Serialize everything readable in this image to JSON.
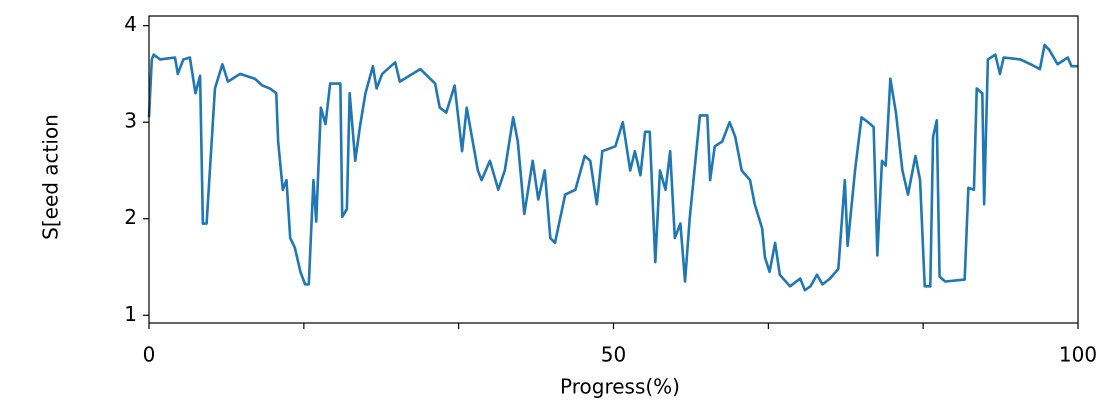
{
  "chart_data": {
    "type": "line",
    "xlabel": "Progress(%)",
    "ylabel": "S[eed action",
    "xlim": [
      0,
      100
    ],
    "ylim": [
      0.92,
      4.1
    ],
    "xticks": [
      0,
      {
        "value": 16.67
      },
      {
        "value": 33.33
      },
      50,
      {
        "value": 66.67
      },
      {
        "value": 83.33
      },
      100
    ],
    "yticks": [
      1,
      2,
      3,
      4
    ],
    "grid": false,
    "series": [
      {
        "name": "Speed action",
        "color": "#1f77b4",
        "x": [
          0,
          0.3,
          0.5,
          1.2,
          2.8,
          3.1,
          3.7,
          4.4,
          5.0,
          5.5,
          5.8,
          6.2,
          7.1,
          7.9,
          8.5,
          9.8,
          11.4,
          12.2,
          13.0,
          13.7,
          13.9,
          14.4,
          14.8,
          15.2,
          15.7,
          16.3,
          16.8,
          17.2,
          17.7,
          18.0,
          18.5,
          19.0,
          19.5,
          20.6,
          20.8,
          21.3,
          21.6,
          22.2,
          22.7,
          23.3,
          24.1,
          24.5,
          25.1,
          26.5,
          27.0,
          29.2,
          30.8,
          31.3,
          32.0,
          32.9,
          33.7,
          34.2,
          35.4,
          35.8,
          36.7,
          37.6,
          38.3,
          39.2,
          39.7,
          40.4,
          41.3,
          41.9,
          42.6,
          43.2,
          43.7,
          44.8,
          45.9,
          46.9,
          47.5,
          48.2,
          48.8,
          50.2,
          51.0,
          51.8,
          52.3,
          52.9,
          53.4,
          53.9,
          54.5,
          55.0,
          55.6,
          56.1,
          56.6,
          57.2,
          57.7,
          58.2,
          59.3,
          60.1,
          60.4,
          60.9,
          61.7,
          62.5,
          63.1,
          63.8,
          64.7,
          65.2,
          66.0,
          66.3,
          66.8,
          67.4,
          67.9,
          69.0,
          70.1,
          70.6,
          71.2,
          71.9,
          72.5,
          73.3,
          74.2,
          74.9,
          75.2,
          76.0,
          76.7,
          77.4,
          78.0,
          78.4,
          78.9,
          79.3,
          79.8,
          80.4,
          81.1,
          81.7,
          82.5,
          83.0,
          83.5,
          84.1,
          84.4,
          84.8,
          85.1,
          85.7,
          87.8,
          88.2,
          88.8,
          89.1,
          89.7,
          89.9,
          90.3,
          91.1,
          91.6,
          92.0,
          93.8,
          94.9,
          95.9,
          96.4,
          96.9,
          97.8,
          98.9,
          99.3,
          100
        ],
        "values": [
          3.05,
          3.65,
          3.7,
          3.65,
          3.67,
          3.5,
          3.65,
          3.67,
          3.3,
          3.48,
          1.95,
          1.95,
          3.35,
          3.6,
          3.42,
          3.5,
          3.45,
          3.38,
          3.35,
          3.3,
          2.8,
          2.3,
          2.4,
          1.8,
          1.7,
          1.45,
          1.32,
          1.32,
          2.4,
          1.97,
          3.15,
          2.98,
          3.4,
          3.4,
          2.02,
          2.1,
          3.3,
          2.6,
          2.95,
          3.3,
          3.58,
          3.35,
          3.5,
          3.62,
          3.42,
          3.55,
          3.4,
          3.15,
          3.1,
          3.38,
          2.7,
          3.15,
          2.5,
          2.4,
          2.6,
          2.3,
          2.5,
          3.05,
          2.8,
          2.05,
          2.6,
          2.2,
          2.5,
          1.8,
          1.75,
          2.25,
          2.3,
          2.65,
          2.6,
          2.15,
          2.7,
          2.75,
          3.0,
          2.5,
          2.7,
          2.45,
          2.9,
          2.9,
          1.55,
          2.5,
          2.3,
          2.7,
          1.8,
          1.95,
          1.35,
          2.0,
          3.07,
          3.07,
          2.4,
          2.75,
          2.8,
          3.0,
          2.85,
          2.5,
          2.4,
          2.15,
          1.9,
          1.6,
          1.45,
          1.75,
          1.42,
          1.3,
          1.38,
          1.26,
          1.3,
          1.42,
          1.32,
          1.38,
          1.48,
          2.4,
          1.72,
          2.5,
          3.05,
          3.0,
          2.95,
          1.62,
          2.6,
          2.55,
          3.45,
          3.1,
          2.5,
          2.25,
          2.65,
          2.4,
          1.3,
          1.3,
          2.85,
          3.02,
          1.4,
          1.35,
          1.37,
          2.32,
          2.3,
          3.35,
          3.3,
          2.15,
          3.65,
          3.7,
          3.5,
          3.67,
          3.65,
          3.6,
          3.55,
          3.8,
          3.75,
          3.6,
          3.67,
          3.58,
          3.58
        ]
      }
    ]
  }
}
